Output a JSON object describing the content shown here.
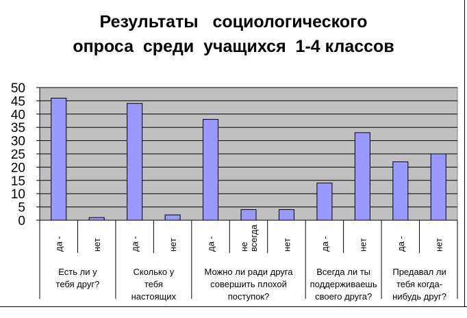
{
  "title": {
    "line1": "Результаты   социологического",
    "line2": "опроса  среди  учащихся  1-4 классов"
  },
  "colors": {
    "plot_bg": "#c0c0c0",
    "bar_fill": "#9999ff",
    "bar_stroke": "#000000",
    "grid": "#000000"
  },
  "chart_data": {
    "type": "bar",
    "title": "Результаты   социологического опроса  среди  учащихся  1-4 классов",
    "ylim": [
      0,
      50
    ],
    "yticks": [
      0,
      5,
      10,
      15,
      20,
      25,
      30,
      35,
      40,
      45,
      50
    ],
    "grid": true,
    "legend": "none",
    "groups": [
      {
        "label": [
          "Есть ли у",
          "тебя друг?"
        ],
        "categories": [
          [
            "да -"
          ],
          [
            "нет"
          ]
        ],
        "values": [
          46,
          1
        ]
      },
      {
        "label": [
          "Сколько у",
          "тебя",
          "настоящих"
        ],
        "categories": [
          [
            "да -"
          ],
          [
            "нет"
          ]
        ],
        "values": [
          44,
          2
        ]
      },
      {
        "label": [
          "Можно ли ради друга",
          "совершить плохой",
          "поступок?"
        ],
        "categories": [
          [
            "да -"
          ],
          [
            "не",
            "всегда"
          ],
          [
            "нет"
          ]
        ],
        "values": [
          38,
          4,
          4
        ]
      },
      {
        "label": [
          "Всегда ли ты",
          "поддерживаешь",
          "своего друга?"
        ],
        "categories": [
          [
            "да -"
          ],
          [
            "нет"
          ]
        ],
        "values": [
          14,
          33
        ]
      },
      {
        "label": [
          "Предавал ли",
          "тебя когда-",
          "нибудь друг?"
        ],
        "categories": [
          [
            "да -"
          ],
          [
            "нет"
          ]
        ],
        "values": [
          22,
          25
        ]
      }
    ]
  }
}
